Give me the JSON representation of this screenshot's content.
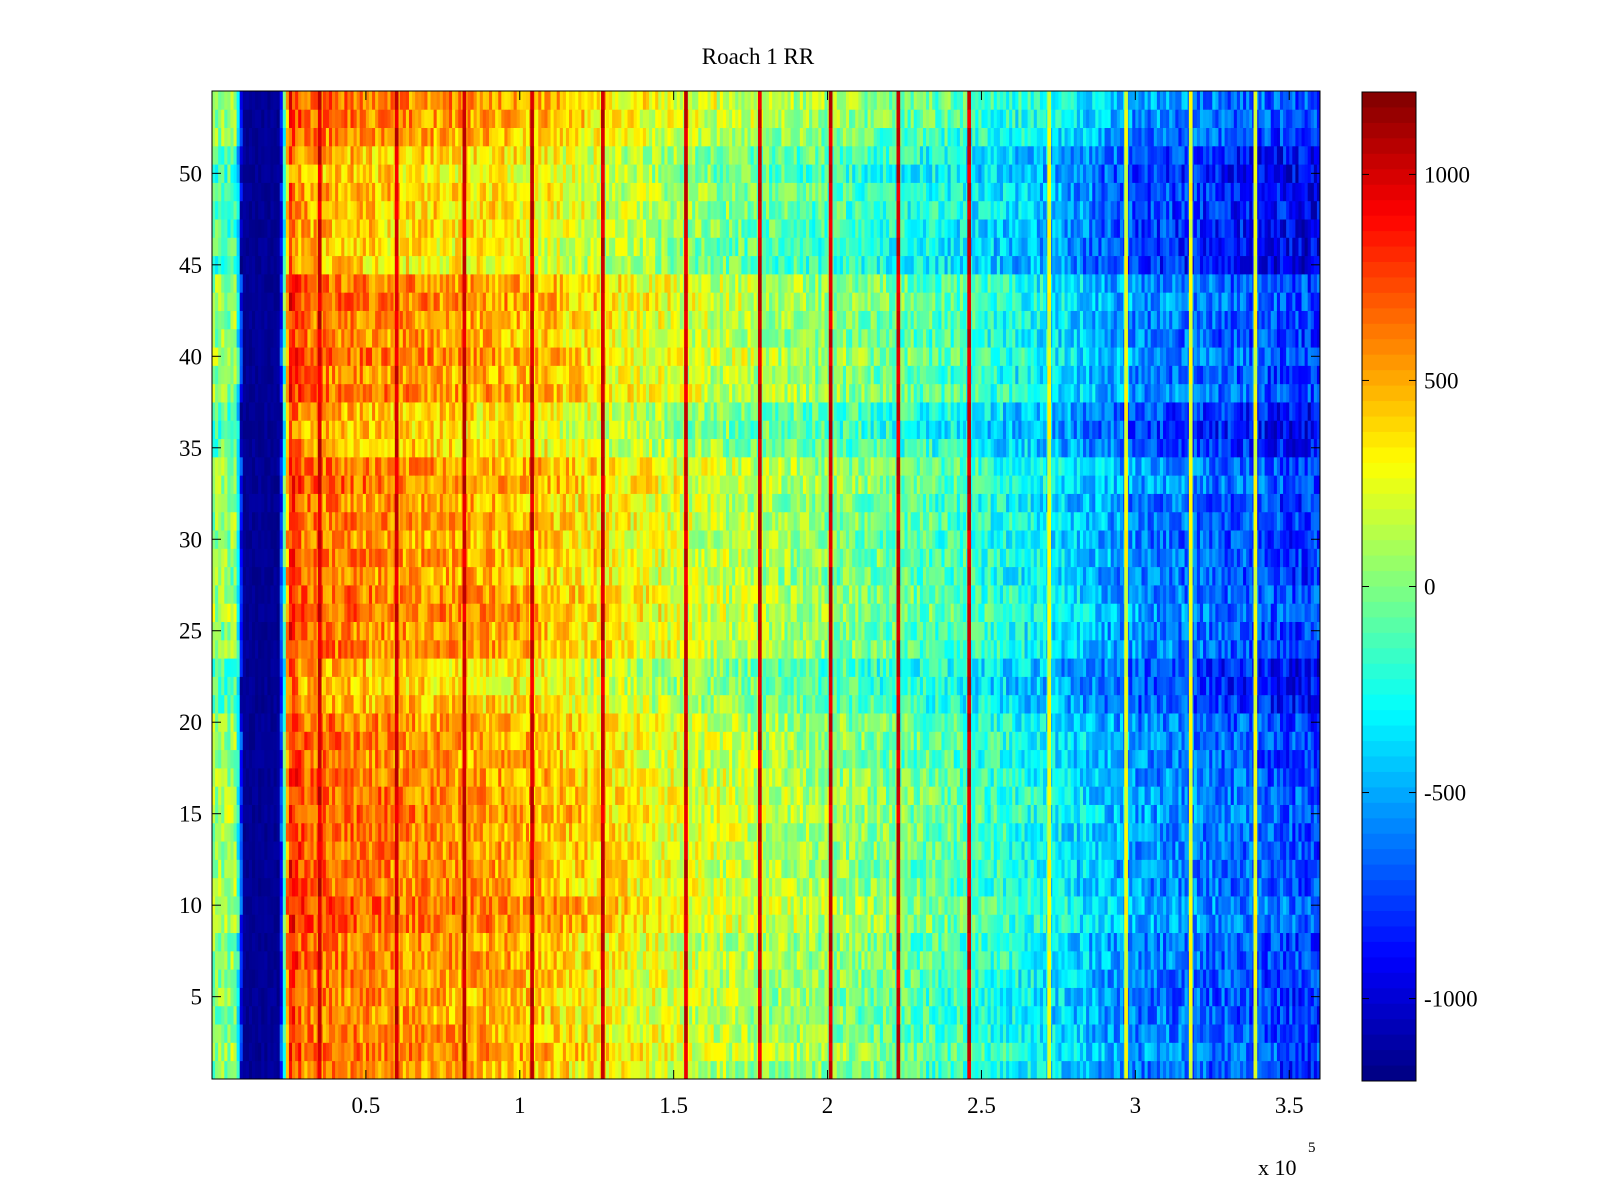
{
  "chart_data": {
    "type": "heatmap",
    "title": "Roach 1 RR",
    "xlabel": "",
    "ylabel": "",
    "colorbar_label": "",
    "colormap": "jet",
    "xlim": [
      0,
      360000
    ],
    "ylim": [
      0.5,
      54.5
    ],
    "clim": [
      -1200,
      1200
    ],
    "x_exponent_label": "x 10",
    "x_exponent_power": "5",
    "x_ticks": [
      {
        "value": 50000,
        "label": "0.5"
      },
      {
        "value": 100000,
        "label": "1"
      },
      {
        "value": 150000,
        "label": "1.5"
      },
      {
        "value": 200000,
        "label": "2"
      },
      {
        "value": 250000,
        "label": "2.5"
      },
      {
        "value": 300000,
        "label": "3"
      },
      {
        "value": 350000,
        "label": "3.5"
      }
    ],
    "y_ticks": [
      {
        "value": 5,
        "label": "5"
      },
      {
        "value": 10,
        "label": "10"
      },
      {
        "value": 15,
        "label": "15"
      },
      {
        "value": 20,
        "label": "20"
      },
      {
        "value": 25,
        "label": "25"
      },
      {
        "value": 30,
        "label": "30"
      },
      {
        "value": 35,
        "label": "35"
      },
      {
        "value": 40,
        "label": "40"
      },
      {
        "value": 45,
        "label": "45"
      },
      {
        "value": 50,
        "label": "50"
      }
    ],
    "colorbar_ticks": [
      {
        "value": 1000,
        "label": "1000"
      },
      {
        "value": 500,
        "label": "500"
      },
      {
        "value": 0,
        "label": "0"
      },
      {
        "value": -500,
        "label": "-500"
      },
      {
        "value": -1000,
        "label": "-1000"
      }
    ],
    "rows": 54,
    "column_profile": {
      "x": [
        0,
        8000,
        10000,
        22000,
        25000,
        30000,
        60000,
        100000,
        130000,
        160000,
        200000,
        240000,
        270000,
        300000,
        340000,
        360000
      ],
      "mean_value": [
        50,
        50,
        -1150,
        -1150,
        850,
        650,
        560,
        480,
        320,
        180,
        40,
        -120,
        -300,
        -560,
        -700,
        -760
      ]
    },
    "vertical_stripes_x": [
      35000,
      60000,
      82000,
      104000,
      127000,
      154000,
      178000,
      201000,
      223000,
      246000
    ],
    "light_stripes_x": [
      272000,
      297000,
      318000,
      339000
    ],
    "row_offsets": [
      {
        "rows": [
          47,
          48,
          49,
          50,
          51
        ],
        "offset": -150
      },
      {
        "rows": [
          45,
          46
        ],
        "offset": -180
      },
      {
        "rows": [
          35,
          36,
          37
        ],
        "offset": -160
      },
      {
        "rows": [
          21,
          22,
          23
        ],
        "offset": -130
      },
      {
        "rows": [
          14,
          15,
          16,
          17
        ],
        "offset": 40
      },
      {
        "rows": [
          9,
          10,
          11
        ],
        "offset": 60
      }
    ]
  }
}
